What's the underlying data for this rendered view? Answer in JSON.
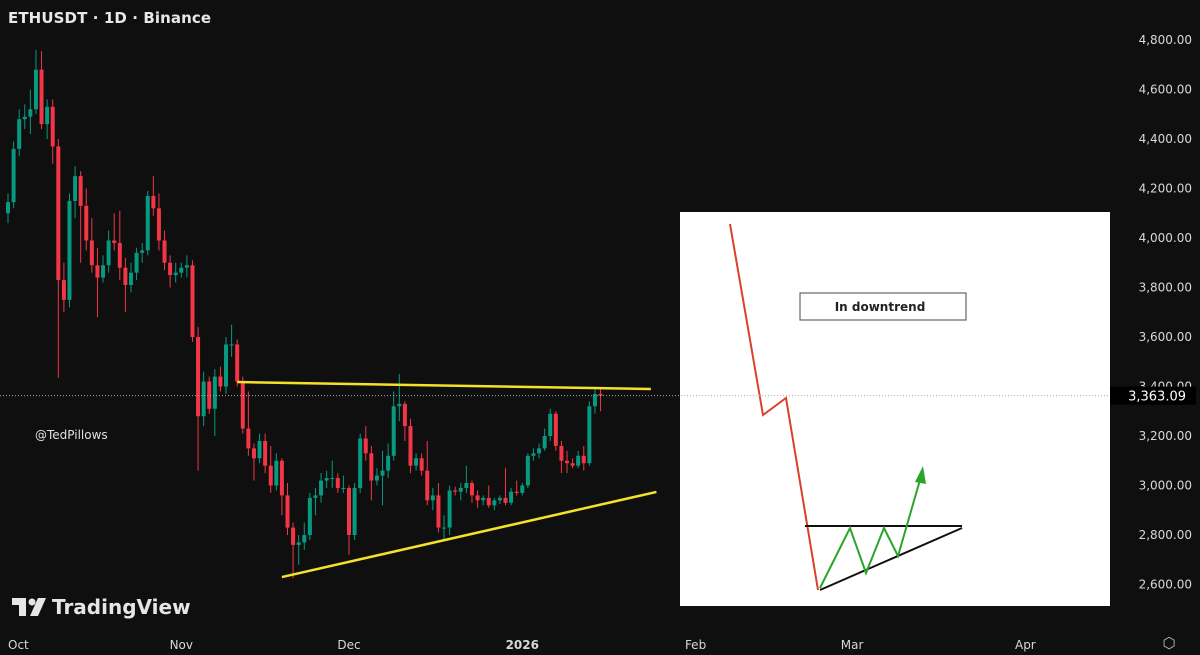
{
  "header": {
    "title": "ETHUSDT · 1D · Binance"
  },
  "watermark": "@TedPillows",
  "logo": {
    "text": "TradingView"
  },
  "colors": {
    "background": "#0f0f0f",
    "up": "#089981",
    "down": "#f23645",
    "trendline": "#f5e12a",
    "text": "#d8d8d8"
  },
  "chart_data": {
    "type": "candlestick",
    "title": "ETHUSDT · 1D · Binance",
    "ylim": [
      2500,
      4900
    ],
    "y_ticks": [
      "4,800.00",
      "4,600.00",
      "4,400.00",
      "4,200.00",
      "4,000.00",
      "3,800.00",
      "3,600.00",
      "3,400.00",
      "3,200.00",
      "3,000.00",
      "2,800.00",
      "2,600.00"
    ],
    "y_tick_values": [
      4800,
      4600,
      4400,
      4200,
      4000,
      3800,
      3600,
      3400,
      3200,
      3000,
      2800,
      2600
    ],
    "x_ticks": [
      {
        "label": "Oct",
        "date": "2025-10-01",
        "bold": false
      },
      {
        "label": "Nov",
        "date": "2025-11-01",
        "bold": false
      },
      {
        "label": "Dec",
        "date": "2025-12-01",
        "bold": false
      },
      {
        "label": "2026",
        "date": "2026-01-01",
        "bold": true
      },
      {
        "label": "Feb",
        "date": "2026-02-01",
        "bold": false
      },
      {
        "label": "Mar",
        "date": "2026-03-01",
        "bold": false
      },
      {
        "label": "Apr",
        "date": "2026-04-01",
        "bold": false
      }
    ],
    "last_price": 3363.09,
    "last_price_label": "3,363.09",
    "grid": false,
    "candles_columns": [
      "date",
      "open",
      "high",
      "low",
      "close"
    ],
    "candles": [
      [
        "2025-10-01",
        4100,
        4180,
        4060,
        4145
      ],
      [
        "2025-10-02",
        4145,
        4390,
        4120,
        4360
      ],
      [
        "2025-10-03",
        4360,
        4520,
        4330,
        4480
      ],
      [
        "2025-10-04",
        4480,
        4540,
        4440,
        4490
      ],
      [
        "2025-10-05",
        4490,
        4600,
        4420,
        4520
      ],
      [
        "2025-10-06",
        4520,
        4760,
        4500,
        4680
      ],
      [
        "2025-10-07",
        4680,
        4755,
        4440,
        4460
      ],
      [
        "2025-10-08",
        4460,
        4560,
        4400,
        4530
      ],
      [
        "2025-10-09",
        4530,
        4560,
        4300,
        4370
      ],
      [
        "2025-10-10",
        4370,
        4400,
        3435,
        3830
      ],
      [
        "2025-10-11",
        3830,
        3900,
        3700,
        3750
      ],
      [
        "2025-10-12",
        3750,
        4180,
        3720,
        4150
      ],
      [
        "2025-10-13",
        4150,
        4290,
        4080,
        4250
      ],
      [
        "2025-10-14",
        4250,
        4270,
        3900,
        4130
      ],
      [
        "2025-10-15",
        4130,
        4200,
        3950,
        3990
      ],
      [
        "2025-10-16",
        3990,
        4080,
        3860,
        3890
      ],
      [
        "2025-10-17",
        3890,
        3960,
        3680,
        3840
      ],
      [
        "2025-10-18",
        3840,
        3930,
        3820,
        3890
      ],
      [
        "2025-10-19",
        3890,
        4030,
        3860,
        3990
      ],
      [
        "2025-10-20",
        3990,
        4100,
        3950,
        3980
      ],
      [
        "2025-10-21",
        3980,
        4110,
        3830,
        3880
      ],
      [
        "2025-10-22",
        3880,
        3920,
        3700,
        3810
      ],
      [
        "2025-10-23",
        3810,
        3900,
        3780,
        3860
      ],
      [
        "2025-10-24",
        3860,
        3960,
        3830,
        3940
      ],
      [
        "2025-10-25",
        3940,
        3980,
        3900,
        3950
      ],
      [
        "2025-10-26",
        3950,
        4190,
        3930,
        4170
      ],
      [
        "2025-10-27",
        4170,
        4250,
        4090,
        4120
      ],
      [
        "2025-10-28",
        4120,
        4180,
        3950,
        3990
      ],
      [
        "2025-10-29",
        3990,
        4030,
        3870,
        3900
      ],
      [
        "2025-10-30",
        3900,
        3930,
        3800,
        3850
      ],
      [
        "2025-10-31",
        3850,
        3900,
        3820,
        3860
      ],
      [
        "2025-11-01",
        3860,
        3900,
        3840,
        3880
      ],
      [
        "2025-11-02",
        3880,
        3930,
        3840,
        3890
      ],
      [
        "2025-11-03",
        3890,
        3910,
        3580,
        3600
      ],
      [
        "2025-11-04",
        3600,
        3640,
        3060,
        3280
      ],
      [
        "2025-11-05",
        3280,
        3460,
        3240,
        3420
      ],
      [
        "2025-11-06",
        3420,
        3440,
        3290,
        3310
      ],
      [
        "2025-11-07",
        3310,
        3470,
        3200,
        3440
      ],
      [
        "2025-11-08",
        3440,
        3480,
        3380,
        3400
      ],
      [
        "2025-11-09",
        3400,
        3600,
        3370,
        3570
      ],
      [
        "2025-11-10",
        3570,
        3650,
        3520,
        3570
      ],
      [
        "2025-11-11",
        3570,
        3590,
        3400,
        3420
      ],
      [
        "2025-11-12",
        3420,
        3440,
        3210,
        3230
      ],
      [
        "2025-11-13",
        3230,
        3380,
        3120,
        3150
      ],
      [
        "2025-11-14",
        3150,
        3170,
        3020,
        3110
      ],
      [
        "2025-11-15",
        3110,
        3210,
        3090,
        3180
      ],
      [
        "2025-11-16",
        3180,
        3210,
        3050,
        3080
      ],
      [
        "2025-11-17",
        3080,
        3160,
        2970,
        3000
      ],
      [
        "2025-11-18",
        3000,
        3130,
        2980,
        3100
      ],
      [
        "2025-11-19",
        3100,
        3110,
        2880,
        2960
      ],
      [
        "2025-11-20",
        2960,
        3010,
        2800,
        2830
      ],
      [
        "2025-11-21",
        2830,
        2850,
        2625,
        2760
      ],
      [
        "2025-11-22",
        2760,
        2800,
        2680,
        2770
      ],
      [
        "2025-11-23",
        2770,
        2850,
        2740,
        2800
      ],
      [
        "2025-11-24",
        2800,
        2970,
        2780,
        2950
      ],
      [
        "2025-11-25",
        2950,
        2990,
        2880,
        2960
      ],
      [
        "2025-11-26",
        2960,
        3050,
        2930,
        3020
      ],
      [
        "2025-11-27",
        3020,
        3060,
        2990,
        3030
      ],
      [
        "2025-11-28",
        3030,
        3100,
        2990,
        3030
      ],
      [
        "2025-11-29",
        3030,
        3050,
        2970,
        2990
      ],
      [
        "2025-11-30",
        2990,
        3040,
        2970,
        2990
      ],
      [
        "2025-12-01",
        2990,
        3000,
        2720,
        2800
      ],
      [
        "2025-12-02",
        2800,
        3010,
        2780,
        2990
      ],
      [
        "2025-12-03",
        2990,
        3210,
        2970,
        3190
      ],
      [
        "2025-12-04",
        3190,
        3240,
        3100,
        3130
      ],
      [
        "2025-12-05",
        3130,
        3160,
        2940,
        3020
      ],
      [
        "2025-12-06",
        3020,
        3070,
        3000,
        3040
      ],
      [
        "2025-12-07",
        3040,
        3140,
        2920,
        3060
      ],
      [
        "2025-12-08",
        3060,
        3170,
        3030,
        3120
      ],
      [
        "2025-12-09",
        3120,
        3380,
        3100,
        3320
      ],
      [
        "2025-12-10",
        3320,
        3450,
        3260,
        3330
      ],
      [
        "2025-12-11",
        3330,
        3340,
        3180,
        3240
      ],
      [
        "2025-12-12",
        3240,
        3270,
        3050,
        3080
      ],
      [
        "2025-12-13",
        3080,
        3130,
        3060,
        3110
      ],
      [
        "2025-12-14",
        3110,
        3130,
        3040,
        3060
      ],
      [
        "2025-12-15",
        3060,
        3180,
        2920,
        2940
      ],
      [
        "2025-12-16",
        2940,
        2990,
        2900,
        2960
      ],
      [
        "2025-12-17",
        2960,
        3010,
        2810,
        2830
      ],
      [
        "2025-12-18",
        2830,
        2880,
        2780,
        2830
      ],
      [
        "2025-12-19",
        2830,
        3000,
        2800,
        2980
      ],
      [
        "2025-12-20",
        2980,
        2995,
        2960,
        2975
      ],
      [
        "2025-12-21",
        2975,
        3010,
        2940,
        2990
      ],
      [
        "2025-12-22",
        2990,
        3080,
        2970,
        3010
      ],
      [
        "2025-12-23",
        3010,
        3020,
        2930,
        2960
      ],
      [
        "2025-12-24",
        2960,
        2980,
        2910,
        2940
      ],
      [
        "2025-12-25",
        2940,
        2960,
        2920,
        2950
      ],
      [
        "2025-12-26",
        2950,
        3000,
        2910,
        2920
      ],
      [
        "2025-12-27",
        2920,
        2950,
        2900,
        2940
      ],
      [
        "2025-12-28",
        2940,
        2960,
        2925,
        2950
      ],
      [
        "2025-12-29",
        2950,
        3070,
        2920,
        2930
      ],
      [
        "2025-12-30",
        2930,
        2990,
        2920,
        2975
      ],
      [
        "2025-12-31",
        2975,
        3020,
        2960,
        2970
      ],
      [
        "2026-01-01",
        2970,
        3010,
        2960,
        3000
      ],
      [
        "2026-01-02",
        3000,
        3130,
        2990,
        3120
      ],
      [
        "2026-01-03",
        3120,
        3150,
        3100,
        3130
      ],
      [
        "2026-01-04",
        3130,
        3170,
        3110,
        3150
      ],
      [
        "2026-01-05",
        3150,
        3230,
        3140,
        3200
      ],
      [
        "2026-01-06",
        3200,
        3310,
        3180,
        3290
      ],
      [
        "2026-01-07",
        3290,
        3300,
        3140,
        3160
      ],
      [
        "2026-01-08",
        3160,
        3180,
        3050,
        3100
      ],
      [
        "2026-01-09",
        3100,
        3140,
        3050,
        3090
      ],
      [
        "2026-01-10",
        3090,
        3110,
        3070,
        3080
      ],
      [
        "2026-01-11",
        3080,
        3140,
        3070,
        3120
      ],
      [
        "2026-01-12",
        3120,
        3160,
        3060,
        3090
      ],
      [
        "2026-01-13",
        3090,
        3340,
        3080,
        3320
      ],
      [
        "2026-01-14",
        3320,
        3400,
        3290,
        3370
      ],
      [
        "2026-01-15",
        3370,
        3390,
        3300,
        3363.09
      ]
    ],
    "trendlines": [
      {
        "name": "resistance",
        "from": {
          "date": "2025-11-11",
          "price": 3418
        },
        "to": {
          "date": "2026-01-24",
          "price": 3390
        }
      },
      {
        "name": "support",
        "from": {
          "date": "2025-11-19",
          "price": 2630
        },
        "to": {
          "date": "2026-01-25",
          "price": 2974
        }
      }
    ]
  },
  "inset": {
    "label": "In downtrend",
    "line_colors": {
      "downtrend": "#d9412b",
      "pattern": "#2aa52a",
      "triangle": "#111111"
    }
  }
}
